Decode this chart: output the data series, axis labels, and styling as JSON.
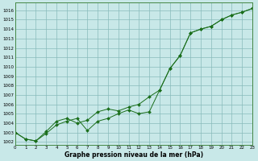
{
  "x": [
    0,
    1,
    2,
    3,
    4,
    5,
    6,
    7,
    8,
    9,
    10,
    11,
    12,
    13,
    14,
    15,
    16,
    17,
    18,
    19,
    20,
    21,
    22,
    23
  ],
  "line1": [
    1003.0,
    1002.3,
    1002.1,
    1002.9,
    1003.8,
    1004.2,
    1004.5,
    1003.2,
    1004.2,
    1004.5,
    1005.0,
    1005.4,
    1005.0,
    1005.2,
    1007.5,
    1009.8,
    1011.2,
    1013.6,
    1014.0,
    1014.3,
    1015.0,
    1015.5,
    1015.8,
    1016.2
  ],
  "line2": [
    1003.0,
    1002.3,
    1002.1,
    1003.1,
    1004.2,
    1004.5,
    1004.0,
    1004.3,
    1005.2,
    1005.5,
    1005.3,
    1005.7,
    1006.0,
    1006.8,
    1007.5,
    1009.8,
    1011.2,
    1013.6,
    1014.0,
    1014.3,
    1015.0,
    1015.5,
    1015.8,
    1016.2
  ],
  "line_color": "#1a6e1a",
  "bg_color": "#c8e8e8",
  "grid_color": "#88bbbb",
  "ylabel_vals": [
    1002,
    1003,
    1004,
    1005,
    1006,
    1007,
    1008,
    1009,
    1010,
    1011,
    1012,
    1013,
    1014,
    1015,
    1016
  ],
  "xlabel": "Graphe pression niveau de la mer (hPa)",
  "ymin": 1001.7,
  "ymax": 1016.8,
  "xmin": 0,
  "xmax": 23
}
